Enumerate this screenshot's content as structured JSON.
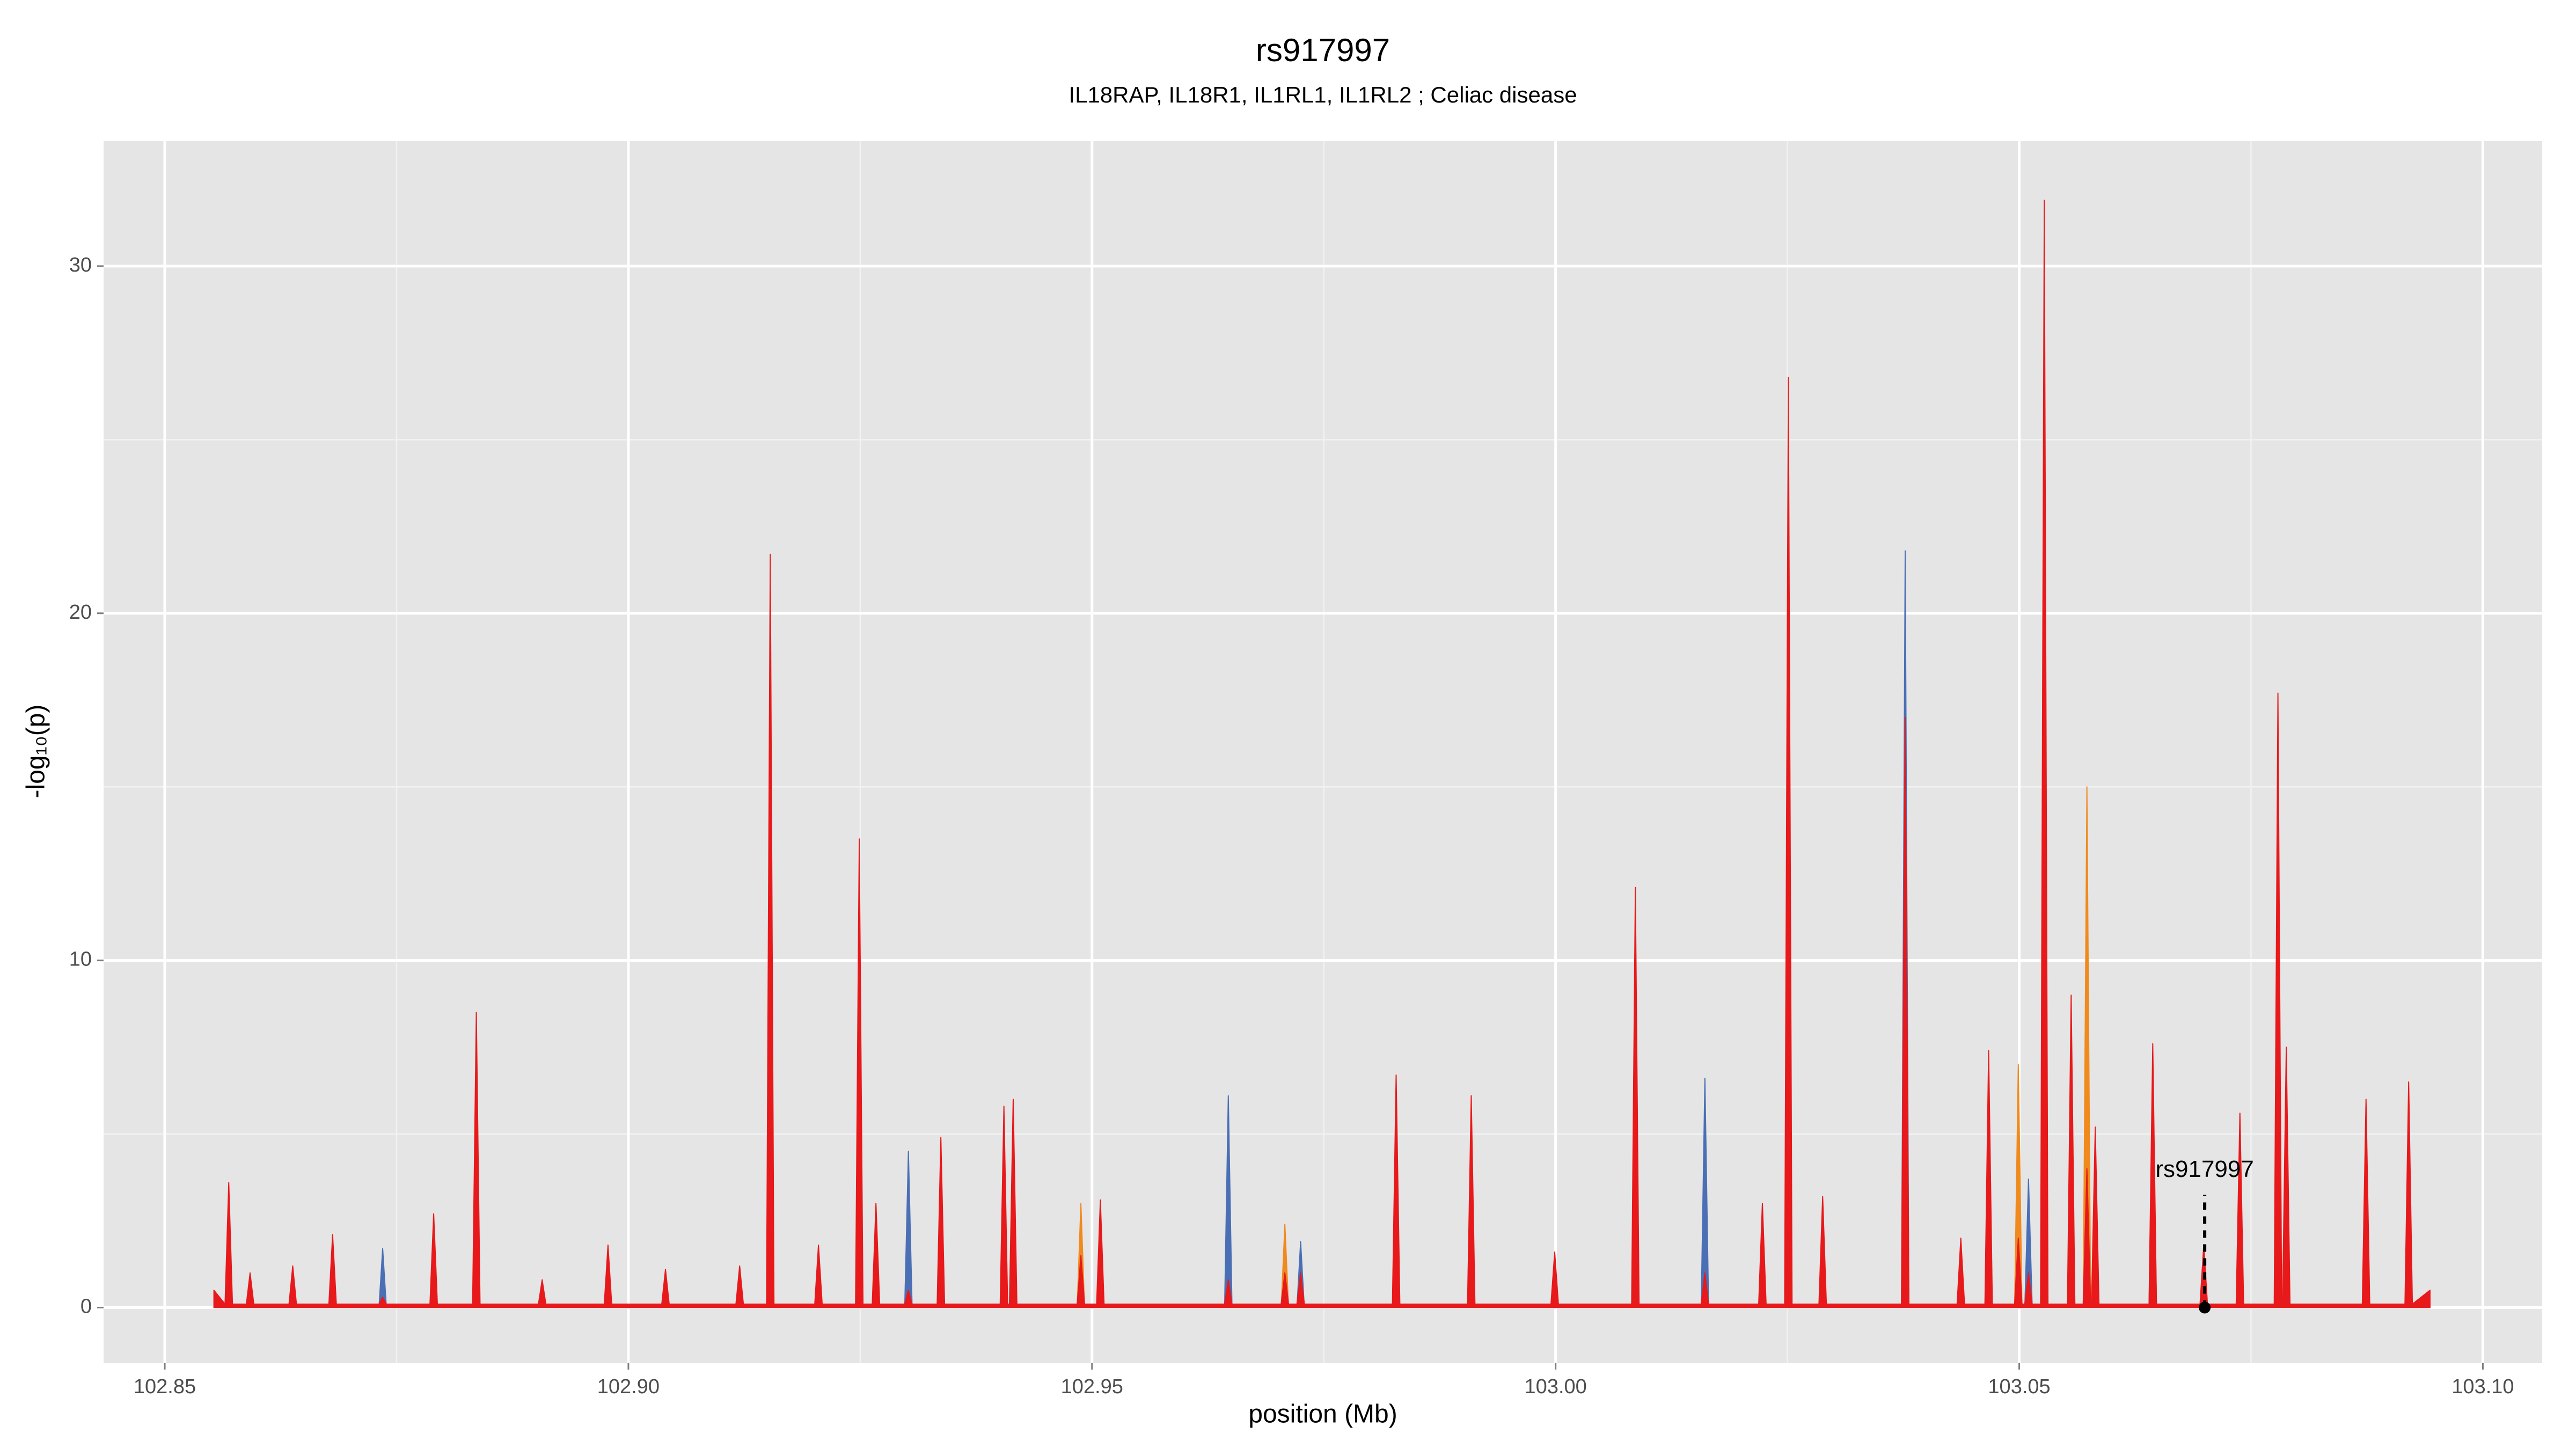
{
  "chart_data": {
    "type": "area",
    "title": "rs917997",
    "subtitle": "IL18RAP, IL18R1, IL1RL1, IL1RL2 ; Celiac disease",
    "x_label": "position (Mb)",
    "y_label": "-log₁₀(p)",
    "xlim": [
      102.8434,
      103.1064
    ],
    "ylim": [
      -1.6,
      33.6
    ],
    "xticks": [
      102.85,
      {
        "value": 102.9,
        "label": "102.90"
      },
      102.95,
      {
        "value": 103.0,
        "label": "103.00"
      },
      103.05,
      {
        "value": 103.1,
        "label": "103.10"
      }
    ],
    "yticks": [
      0,
      10,
      20,
      30
    ],
    "x_minor_grid": [
      102.875,
      102.925,
      102.975,
      103.025,
      103.075
    ],
    "y_minor_grid": [
      5,
      15,
      25
    ],
    "grid": true,
    "background": "#e5e5e5",
    "x": [
      102.8553,
      102.8565,
      102.8569,
      102.8573,
      102.8588,
      102.8592,
      102.8596,
      102.8634,
      102.8638,
      102.8642,
      102.8677,
      102.8681,
      102.8685,
      102.8731,
      102.8735,
      102.8739,
      102.8786,
      102.879,
      102.8794,
      102.8832,
      102.8836,
      102.884,
      102.8903,
      102.8907,
      102.8911,
      102.8974,
      102.8978,
      102.8982,
      102.9036,
      102.904,
      102.9044,
      102.9116,
      102.912,
      102.9124,
      102.9149,
      102.9153,
      102.9157,
      102.9201,
      102.9205,
      102.9209,
      102.9245,
      102.9249,
      102.9253,
      102.9263,
      102.9267,
      102.9271,
      102.9298,
      102.9302,
      102.9306,
      102.9333,
      102.9337,
      102.9341,
      102.9401,
      102.9405,
      102.9409,
      102.9411,
      102.9415,
      102.9419,
      102.9484,
      102.9488,
      102.9492,
      102.9505,
      102.9509,
      102.9513,
      102.9643,
      102.9647,
      102.9651,
      102.9704,
      102.9708,
      102.9712,
      102.9721,
      102.9725,
      102.9729,
      102.9824,
      102.9828,
      102.9832,
      102.9905,
      102.9909,
      102.9913,
      102.9995,
      102.9999,
      103.0003,
      103.0082,
      103.0086,
      103.009,
      103.0157,
      103.0161,
      103.0165,
      103.0219,
      103.0223,
      103.0227,
      103.0247,
      103.0251,
      103.0255,
      103.0284,
      103.0288,
      103.0292,
      103.0373,
      103.0377,
      103.0381,
      103.0433,
      103.0437,
      103.0441,
      103.0463,
      103.0467,
      103.0471,
      103.0495,
      103.0499,
      103.0503,
      103.0506,
      103.051,
      103.0514,
      103.0523,
      103.0527,
      103.0531,
      103.0552,
      103.0556,
      103.056,
      103.0569,
      103.0573,
      103.0577,
      103.0578,
      103.0582,
      103.0586,
      103.064,
      103.0644,
      103.0648,
      103.0695,
      103.0699,
      103.0703,
      103.0734,
      103.0738,
      103.0742,
      103.0775,
      103.0779,
      103.0783,
      103.0784,
      103.0788,
      103.0792,
      103.087,
      103.0874,
      103.0878,
      103.0916,
      103.092,
      103.0924,
      103.0943
    ],
    "series": [
      {
        "color": "#4a6fb5",
        "values": [
          0,
          0,
          0,
          0,
          0,
          0,
          0,
          0,
          0,
          0,
          0,
          0,
          0,
          0,
          1.7,
          0,
          0,
          0,
          0,
          0,
          0,
          0,
          0,
          0,
          0,
          0,
          0,
          0,
          0,
          0,
          0,
          0,
          0,
          0,
          0,
          0,
          0,
          0,
          0,
          0,
          0,
          0,
          0,
          0,
          0,
          0,
          0,
          4.5,
          0,
          0,
          0,
          0,
          0,
          0,
          0,
          0,
          0,
          0,
          0,
          0,
          0,
          0,
          0,
          0,
          0,
          6.1,
          0,
          0,
          0,
          0,
          0,
          1.9,
          0,
          0,
          0,
          0,
          0,
          0,
          0,
          0,
          0,
          0,
          0,
          0,
          0,
          0,
          6.6,
          0,
          0,
          0,
          0,
          0,
          0,
          0,
          0,
          0,
          0,
          0,
          21.8,
          0,
          0,
          0,
          0,
          0,
          0,
          0,
          0,
          0,
          0,
          0,
          3.7,
          0,
          0,
          0,
          0,
          0,
          0,
          0,
          0,
          0,
          0,
          0,
          0,
          0,
          0,
          7.0,
          0,
          0,
          0,
          0,
          0,
          0,
          0,
          0,
          0,
          0,
          0,
          0,
          0,
          0,
          0,
          0,
          0,
          0,
          0,
          0
        ]
      },
      {
        "color": "#f08a1c",
        "values": [
          0,
          0,
          0,
          0,
          0,
          0,
          0,
          0,
          0,
          0,
          0,
          0,
          0,
          0,
          0,
          0,
          0,
          0,
          0,
          0,
          0,
          0,
          0,
          0,
          0,
          0,
          0,
          0,
          0,
          0,
          0,
          0,
          0,
          0,
          0,
          0,
          0,
          0,
          0,
          0,
          0,
          0,
          0,
          0,
          0,
          0,
          0,
          0,
          0,
          0,
          0,
          0,
          0,
          0,
          0,
          0,
          0,
          0,
          0,
          3.0,
          0,
          0,
          0,
          0,
          0,
          0,
          0,
          0,
          2.4,
          0,
          0,
          0,
          0,
          0,
          0,
          0,
          0,
          0,
          0,
          0,
          0,
          0,
          0,
          0,
          0,
          0,
          0,
          0,
          0,
          0,
          0,
          0,
          0,
          0,
          0,
          0,
          0,
          0,
          0,
          0,
          0,
          0,
          0,
          0,
          0,
          0,
          0,
          7.0,
          0,
          0,
          0,
          0,
          0,
          0,
          0,
          0,
          0,
          0,
          0,
          15.0,
          0,
          0,
          0,
          0,
          0,
          0,
          0,
          0,
          0,
          0,
          0,
          0,
          0,
          0,
          0,
          0,
          0,
          0,
          0,
          0,
          0,
          0,
          0,
          0,
          0,
          0
        ]
      },
      {
        "color": "#e8191b",
        "values": [
          0.5,
          0.1,
          3.6,
          0.1,
          0.1,
          1.0,
          0.1,
          0.1,
          1.2,
          0.1,
          0.1,
          2.1,
          0.1,
          0.1,
          0.3,
          0.1,
          0.1,
          2.7,
          0.1,
          0.1,
          8.5,
          0.1,
          0.1,
          0.8,
          0.1,
          0.1,
          1.8,
          0.1,
          0.1,
          1.1,
          0.1,
          0.1,
          1.2,
          0.1,
          0.1,
          21.7,
          0.1,
          0.1,
          1.8,
          0.1,
          0.1,
          13.5,
          0.1,
          0.1,
          3.0,
          0.1,
          0.1,
          0.5,
          0.1,
          0.1,
          4.9,
          0.1,
          0.1,
          5.8,
          0.1,
          0.1,
          6.0,
          0.1,
          0.1,
          1.5,
          0.1,
          0.1,
          3.1,
          0.1,
          0.1,
          0.8,
          0.1,
          0.1,
          1.0,
          0.1,
          0.1,
          1.0,
          0.1,
          0.1,
          6.7,
          0.1,
          0.1,
          6.1,
          0.1,
          0.1,
          1.6,
          0.1,
          0.1,
          12.1,
          0.1,
          0.1,
          1.0,
          0.1,
          0.1,
          3.0,
          0.1,
          0.1,
          26.8,
          0.1,
          0.1,
          3.2,
          0.1,
          0.1,
          17.0,
          0.1,
          0.1,
          2.0,
          0.1,
          0.1,
          7.4,
          0.1,
          0.1,
          2.0,
          0.1,
          0.1,
          1.0,
          0.1,
          0.1,
          31.9,
          0.1,
          0.1,
          9.0,
          0.1,
          0.1,
          4.0,
          0.1,
          0.1,
          5.2,
          0.1,
          0.1,
          7.6,
          0.1,
          0.1,
          1.8,
          0.1,
          0.1,
          5.6,
          0.1,
          0.1,
          17.7,
          0.1,
          0.1,
          7.5,
          0.1,
          0.1,
          6.0,
          0.1,
          0.1,
          6.5,
          0.1,
          0.5
        ]
      }
    ],
    "annotation": {
      "text": "rs917997",
      "x": 103.07,
      "y": 0
    }
  }
}
